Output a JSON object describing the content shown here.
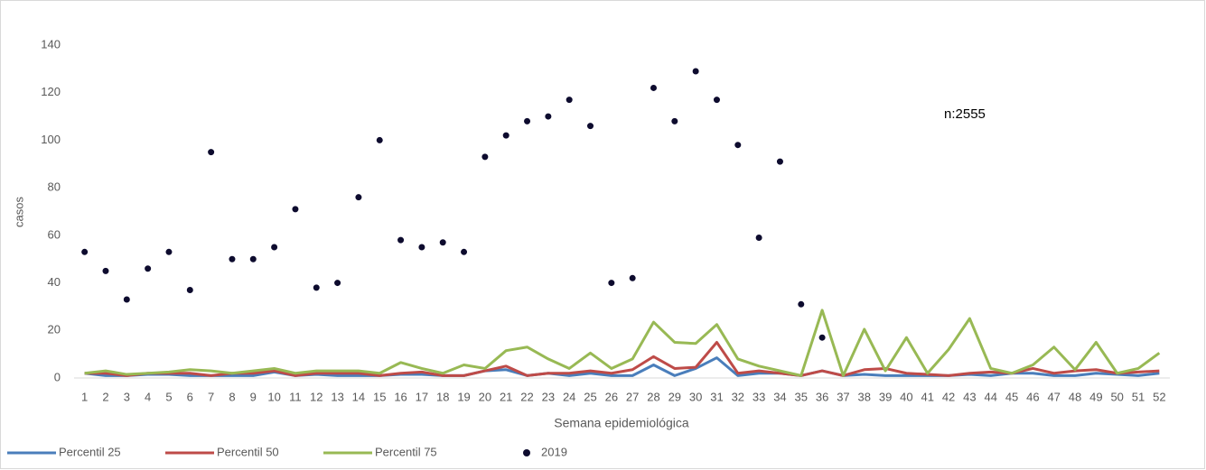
{
  "chart_data": {
    "type": "line",
    "y_label": "casos",
    "x_label": "Semana epidemiológica",
    "annotation": "n:2555",
    "categories": [
      "1",
      "2",
      "3",
      "4",
      "5",
      "6",
      "7",
      "8",
      "9",
      "10",
      "11",
      "12",
      "13",
      "14",
      "15",
      "16",
      "17",
      "18",
      "19",
      "20",
      "21",
      "22",
      "23",
      "24",
      "25",
      "26",
      "27",
      "28",
      "29",
      "30",
      "31",
      "32",
      "33",
      "34",
      "35",
      "36",
      "37",
      "38",
      "39",
      "40",
      "41",
      "42",
      "43",
      "44",
      "45",
      "46",
      "47",
      "48",
      "49",
      "50",
      "51",
      "52"
    ],
    "ylim": [
      0,
      140
    ],
    "yticks": [
      0,
      20,
      40,
      60,
      80,
      100,
      120,
      140
    ],
    "grid": false,
    "legend": "bottom",
    "series": [
      {
        "name": "Percentil 25",
        "color": "#4a7ebb",
        "values": [
          2,
          1,
          1,
          1.5,
          1.5,
          1,
          1,
          1,
          1,
          2.5,
          1,
          1.5,
          1,
          1,
          1,
          1.5,
          1.5,
          1,
          1,
          3,
          3.5,
          1,
          2,
          1,
          2,
          1,
          1,
          5.5,
          1,
          4,
          8.5,
          1,
          2,
          2,
          1,
          3,
          1,
          1.5,
          1,
          1,
          1,
          1,
          1.5,
          1,
          2,
          2,
          1,
          1,
          2,
          1.5,
          1,
          2
        ]
      },
      {
        "name": "Percentil 50",
        "color": "#be4b48",
        "values": [
          2,
          2,
          1,
          2,
          2,
          2,
          1,
          2,
          2,
          3,
          1,
          2,
          2,
          2,
          1,
          2,
          2.5,
          1,
          1,
          3,
          5,
          1,
          2,
          2,
          3,
          2,
          3.5,
          9,
          4,
          4.5,
          15,
          2,
          3,
          2,
          1,
          3,
          1,
          3.5,
          4,
          2,
          1.5,
          1,
          2,
          2.5,
          2,
          4,
          2,
          3,
          3.5,
          2,
          2.5,
          3
        ]
      },
      {
        "name": "Percentil 75",
        "color": "#98b954",
        "values": [
          2,
          3,
          1.5,
          2,
          2.5,
          3.5,
          3,
          2,
          3,
          4,
          2,
          3,
          3,
          3,
          2,
          6.5,
          4,
          2,
          5.5,
          4,
          11.5,
          13,
          8,
          4,
          10.5,
          4,
          8,
          23.5,
          15,
          14.5,
          22.5,
          8,
          5,
          3,
          1,
          28.5,
          1,
          20.5,
          3,
          17,
          2,
          12,
          25,
          4,
          2,
          5.5,
          13,
          3.5,
          15,
          2,
          4,
          10.5
        ]
      },
      {
        "name": "2019",
        "type": "scatter",
        "color": "#0d0b2e",
        "values": [
          53,
          45,
          33,
          46,
          53,
          37,
          95,
          50,
          50,
          55,
          71,
          38,
          40,
          76,
          100,
          58,
          55,
          57,
          53,
          93,
          102,
          108,
          110,
          117,
          106,
          40,
          42,
          122,
          108,
          129,
          117,
          98,
          59,
          91,
          31,
          17,
          null,
          null,
          null,
          null,
          null,
          null,
          null,
          null,
          null,
          null,
          null,
          null,
          null,
          null,
          null,
          null
        ]
      }
    ]
  }
}
